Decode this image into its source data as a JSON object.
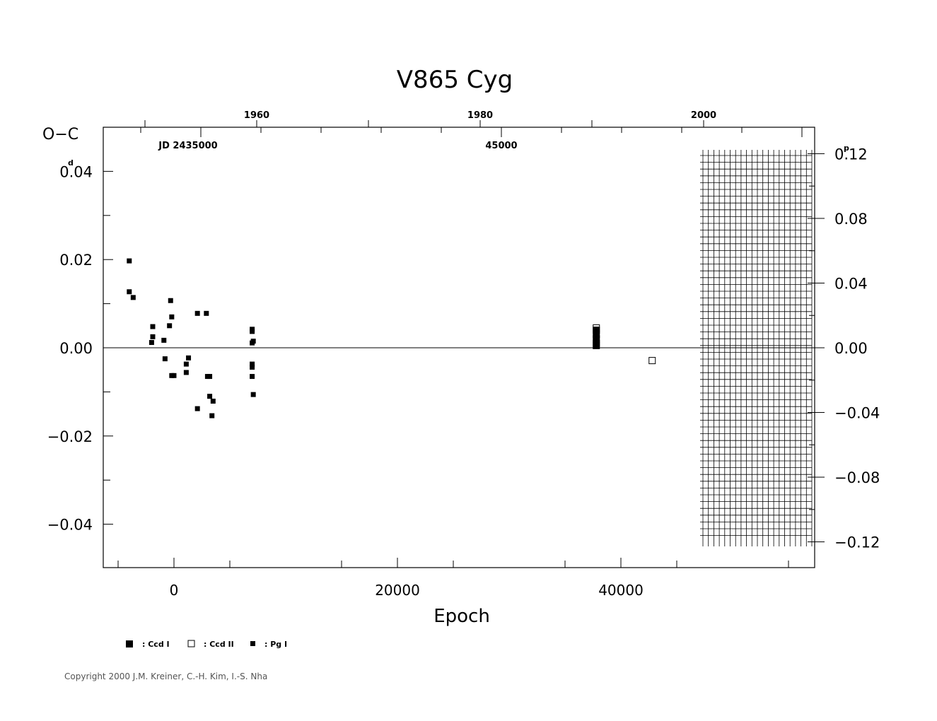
{
  "chart_data": {
    "type": "scatter",
    "title": "V865  Cyg",
    "xlabel": "Epoch",
    "ylabel": "O−C",
    "ylabel_unit": "d",
    "right_unit": "p",
    "xlim": [
      -6500,
      57000
    ],
    "ylim": [
      -0.05,
      0.05
    ],
    "right_ylim": [
      -0.12,
      0.12
    ],
    "x_ticks": [
      0,
      20000,
      40000
    ],
    "x_tick_labels": [
      "0",
      "20000",
      "40000"
    ],
    "y_ticks": [
      0.04,
      0.02,
      0.0,
      -0.02,
      -0.04
    ],
    "y_tick_labels": [
      "0.04",
      "0.02",
      "0.00",
      "−0.02",
      "−0.04"
    ],
    "right_ticks": [
      0.12,
      0.08,
      0.04,
      0.0,
      -0.04,
      -0.08,
      -0.12
    ],
    "right_tick_labels": [
      "0.12",
      "0.08",
      "0.04",
      "0.00",
      "−0.04",
      "−0.08",
      "−0.12"
    ],
    "top_year_ticks": [
      1960,
      1980,
      2000
    ],
    "top_year_labels": [
      "1960",
      "1980",
      "2000"
    ],
    "jd_ticks": [
      35000,
      45000
    ],
    "jd_labels": [
      "JD  2435000",
      "45000"
    ],
    "series": [
      {
        "name": "Ccd I",
        "marker": "filled-square-large",
        "points": [
          [
            37800,
            0.004
          ],
          [
            37800,
            0.003
          ],
          [
            37800,
            0.002
          ],
          [
            37800,
            0.001
          ],
          [
            37800,
            0.0005
          ]
        ]
      },
      {
        "name": "Ccd II",
        "marker": "open-square",
        "points": [
          [
            37800,
            0.0045
          ],
          [
            42800,
            -0.0029
          ]
        ]
      },
      {
        "name": "Pg I",
        "marker": "filled-square-small",
        "points": [
          [
            -4000,
            0.0197
          ],
          [
            -4000,
            0.0127
          ],
          [
            -3650,
            0.0114
          ],
          [
            -1900,
            0.0048
          ],
          [
            -1900,
            0.0025
          ],
          [
            -2000,
            0.0012
          ],
          [
            -900,
            0.0017
          ],
          [
            -800,
            -0.0025
          ],
          [
            -300,
            0.0107
          ],
          [
            -400,
            0.005
          ],
          [
            -200,
            0.007
          ],
          [
            -200,
            -0.0063
          ],
          [
            0,
            -0.0063
          ],
          [
            1100,
            -0.0037
          ],
          [
            1300,
            -0.0023
          ],
          [
            1100,
            -0.0056
          ],
          [
            2100,
            0.0078
          ],
          [
            2100,
            -0.0138
          ],
          [
            2900,
            0.0078
          ],
          [
            3000,
            -0.0065
          ],
          [
            3200,
            -0.0065
          ],
          [
            3200,
            -0.011
          ],
          [
            3500,
            -0.0121
          ],
          [
            3400,
            -0.0154
          ],
          [
            7000,
            0.0042
          ],
          [
            7000,
            0.0037
          ],
          [
            7100,
            0.0015
          ],
          [
            7000,
            0.0011
          ],
          [
            7000,
            -0.0037
          ],
          [
            7000,
            -0.0044
          ],
          [
            7000,
            -0.0065
          ],
          [
            7100,
            -0.0106
          ]
        ]
      }
    ],
    "copyright": "Copyright 2000 J.M. Kreiner, C.-H. Kim, I.-S. Nha"
  }
}
